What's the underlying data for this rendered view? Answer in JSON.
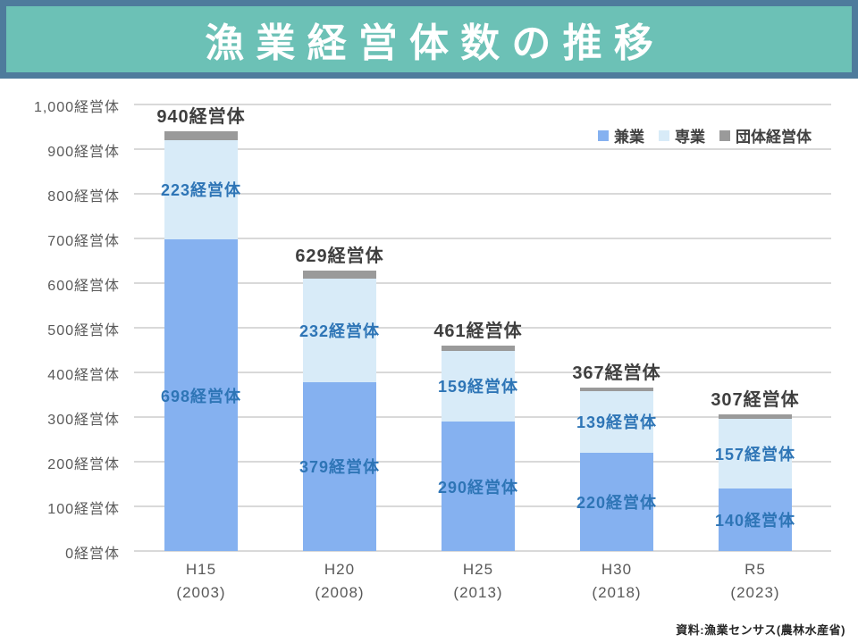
{
  "header": {
    "title": "漁業経営体数の推移"
  },
  "footer": {
    "source": "資料:漁業センサス(農林水産省)"
  },
  "legend": {
    "items": [
      {
        "label": "兼業",
        "color": "#85b1f0"
      },
      {
        "label": "専業",
        "color": "#d8ebf8"
      },
      {
        "label": "団体経営体",
        "color": "#9a9a9a"
      }
    ]
  },
  "colors": {
    "title_background": "#6cc1b6",
    "title_border": "#4e7b9c",
    "title_text": "#ffffff",
    "series_kengyou": "#85b1f0",
    "series_sengyou": "#d8ebf8",
    "series_dantai": "#9a9a9a",
    "segment_label_text": "#2e75b6",
    "total_label_text": "#3f3f3f",
    "axis_text": "#595959",
    "gridline": "#d9d9d9"
  },
  "chart_data": {
    "type": "bar",
    "stacked": true,
    "grid": true,
    "legend_position": "top-right",
    "unit_suffix": "経営体",
    "ylim": [
      0,
      1000
    ],
    "ytick_interval": 100,
    "ytick_labels": [
      "0経営体",
      "100経営体",
      "200経営体",
      "300経営体",
      "400経営体",
      "500経営体",
      "600経営体",
      "700経営体",
      "800経営体",
      "900経営体",
      "1,000経営体"
    ],
    "categories": [
      {
        "label": "H15",
        "sublabel": "(2003)"
      },
      {
        "label": "H20",
        "sublabel": "(2008)"
      },
      {
        "label": "H25",
        "sublabel": "(2013)"
      },
      {
        "label": "H30",
        "sublabel": "(2018)"
      },
      {
        "label": "R5",
        "sublabel": "(2023)"
      }
    ],
    "series": [
      {
        "name": "兼業",
        "color": "#85b1f0",
        "values": [
          698,
          379,
          290,
          220,
          140
        ],
        "labels": [
          "698経営体",
          "379経営体",
          "290経営体",
          "220経営体",
          "140経営体"
        ]
      },
      {
        "name": "専業",
        "color": "#d8ebf8",
        "values": [
          223,
          232,
          159,
          139,
          157
        ],
        "labels": [
          "223経営体",
          "232経営体",
          "159経営体",
          "139経営体",
          "157経営体"
        ]
      },
      {
        "name": "団体経営体",
        "color": "#9a9a9a",
        "values": [
          19,
          18,
          12,
          8,
          10
        ],
        "labels": [
          "",
          "",
          "",
          "",
          ""
        ]
      }
    ],
    "totals": [
      940,
      629,
      461,
      367,
      307
    ],
    "total_labels": [
      "940経営体",
      "629経営体",
      "461経営体",
      "367経営体",
      "307経営体"
    ]
  }
}
